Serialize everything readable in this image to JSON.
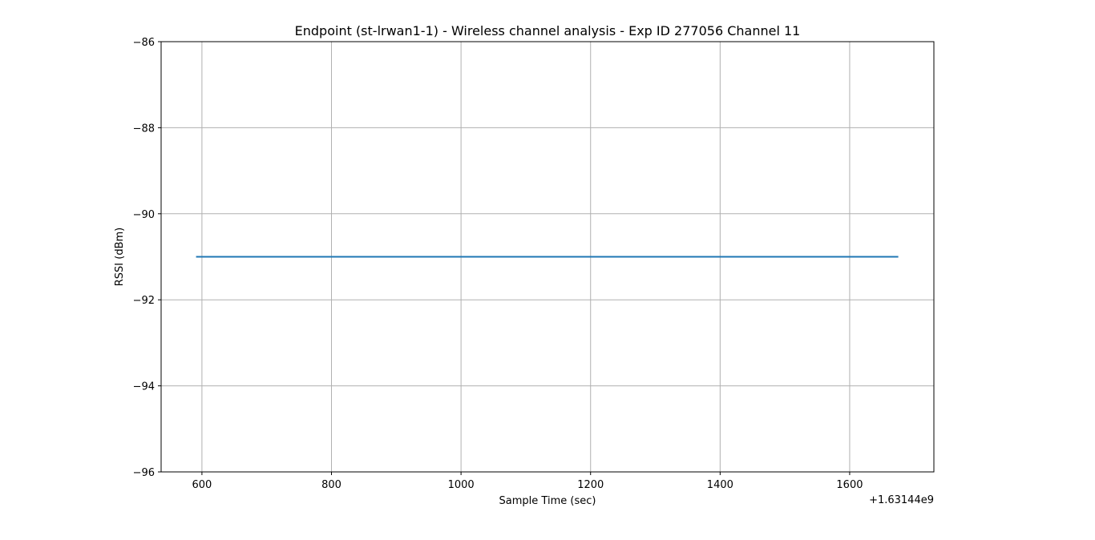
{
  "chart_data": {
    "type": "line",
    "title": "Endpoint (st-lrwan1-1) - Wireless channel analysis - Exp ID 277056 Channel 11",
    "xlabel": "Sample Time (sec)",
    "ylabel": "RSSI (dBm)",
    "x_offset_label": "+1.63144e9",
    "xlim": [
      537,
      1730
    ],
    "ylim": [
      -96,
      -86
    ],
    "x_ticks": [
      600,
      800,
      1000,
      1200,
      1400,
      1600
    ],
    "x_tick_labels": [
      "600",
      "800",
      "1000",
      "1200",
      "1400",
      "1600"
    ],
    "y_ticks": [
      -86,
      -88,
      -90,
      -92,
      -94,
      -96
    ],
    "y_tick_labels": [
      "−86",
      "−88",
      "−90",
      "−92",
      "−94",
      "−96"
    ],
    "grid": true,
    "series": [
      {
        "color": "#1f77b4",
        "x": [
          591,
          1675
        ],
        "y": [
          -91,
          -91
        ]
      }
    ]
  }
}
